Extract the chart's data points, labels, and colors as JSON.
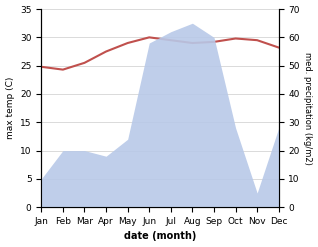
{
  "months": [
    "Jan",
    "Feb",
    "Mar",
    "Apr",
    "May",
    "Jun",
    "Jul",
    "Aug",
    "Sep",
    "Oct",
    "Nov",
    "Dec"
  ],
  "max_temp": [
    24.8,
    24.3,
    25.5,
    27.5,
    29.0,
    30.0,
    29.5,
    29.0,
    29.2,
    29.8,
    29.5,
    28.2
  ],
  "precipitation": [
    10,
    20,
    20,
    18,
    24,
    58,
    62,
    65,
    60,
    28,
    5,
    28
  ],
  "temp_color": "#c0504d",
  "precip_fill_color": "#b8c9e8",
  "ylabel_left": "max temp (C)",
  "ylabel_right": "med. precipitation (kg/m2)",
  "xlabel": "date (month)",
  "ylim_left": [
    0,
    35
  ],
  "ylim_right": [
    0,
    70
  ],
  "yticks_left": [
    0,
    5,
    10,
    15,
    20,
    25,
    30,
    35
  ],
  "yticks_right": [
    0,
    10,
    20,
    30,
    40,
    50,
    60,
    70
  ],
  "bg_color": "#ffffff",
  "grid_color": "#cccccc"
}
